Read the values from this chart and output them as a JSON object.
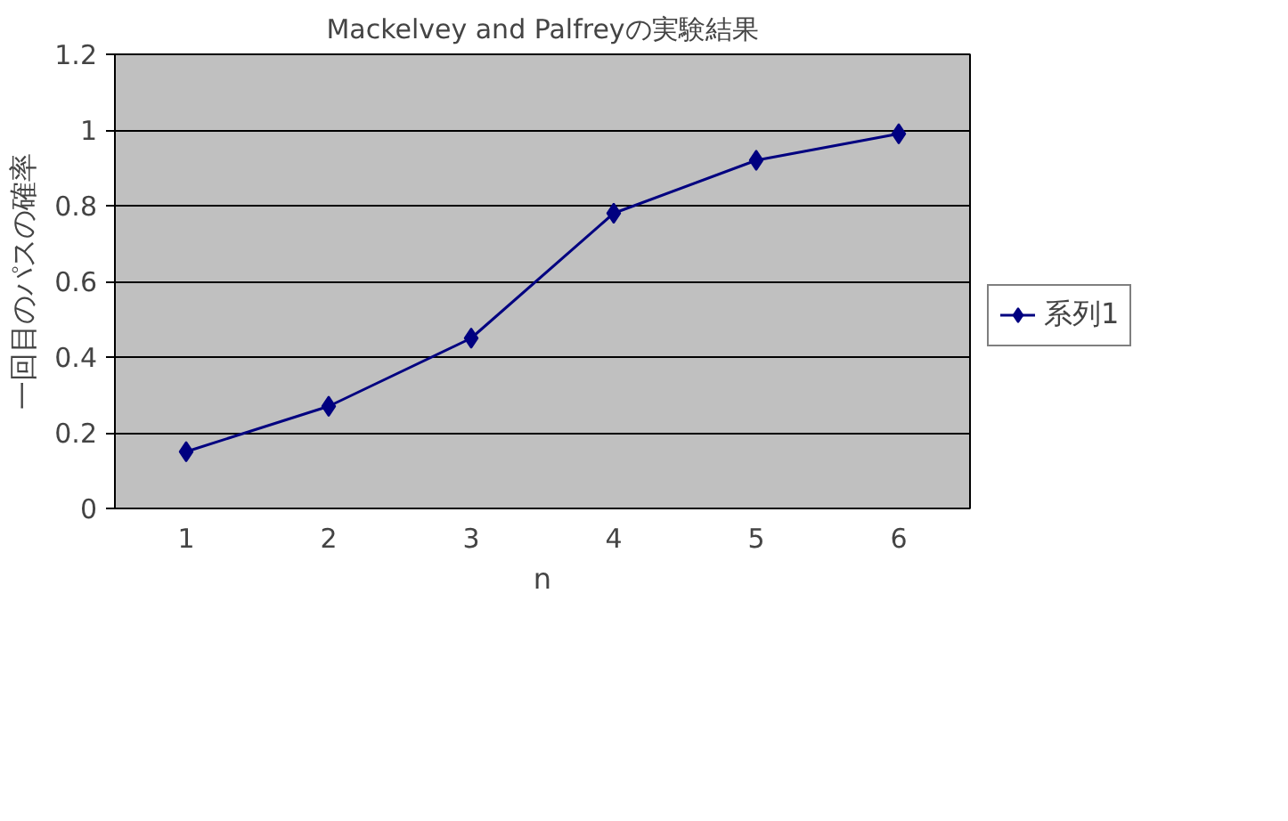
{
  "chart_data": {
    "type": "line",
    "title": "Mackelvey and Palfreyの実験結果",
    "xlabel": "n",
    "ylabel": "一回目のパスの確率",
    "categories": [
      "1",
      "2",
      "3",
      "4",
      "5",
      "6"
    ],
    "series": [
      {
        "name": "系列1",
        "color": "#000080",
        "values": [
          0.15,
          0.27,
          0.45,
          0.78,
          0.92,
          0.99
        ]
      }
    ],
    "ylim": [
      0,
      1.2
    ],
    "yticks": [
      0,
      0.2,
      0.4,
      0.6,
      0.8,
      1,
      1.2
    ],
    "grid": "y",
    "legend": "right",
    "marker": "diamond",
    "line_style": "solid"
  }
}
